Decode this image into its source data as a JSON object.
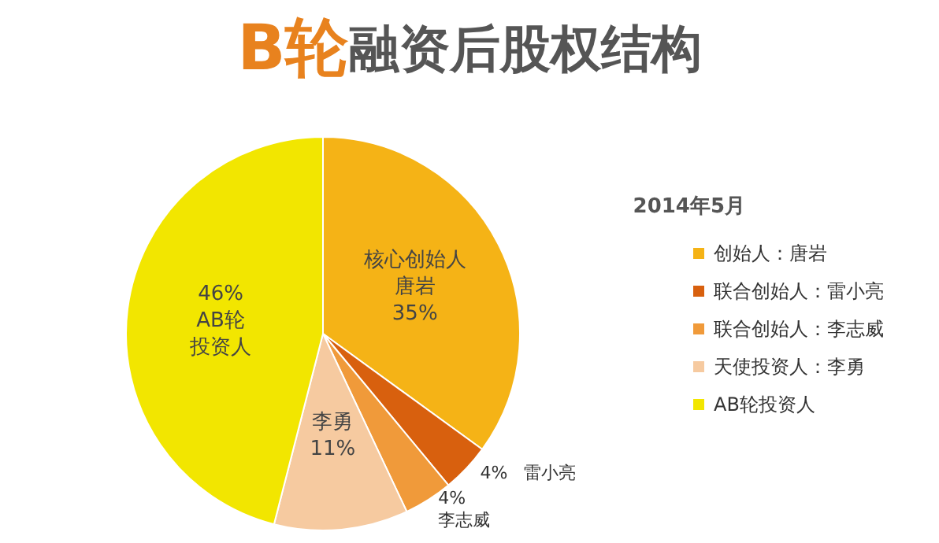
{
  "chart_data": {
    "type": "pie",
    "title": "B轮融资后股权结构",
    "legend_title": "2014年5月",
    "categories": [
      "创始人：唐岩",
      "联合创始人：雷小亮",
      "联合创始人：李志威",
      "天使投资人：李勇",
      "AB轮投资人"
    ],
    "values": [
      35,
      4,
      4,
      11,
      46
    ],
    "colors": [
      "#f5b316",
      "#d8600e",
      "#f09a3a",
      "#f6caa0",
      "#f2e600"
    ],
    "value_labels": [
      "核心创始人唐岩\n35%",
      "4%   雷小亮",
      "4%\n李志威",
      "李勇\n11%",
      "46%\nAB轮投资人"
    ],
    "legend": "right"
  }
}
